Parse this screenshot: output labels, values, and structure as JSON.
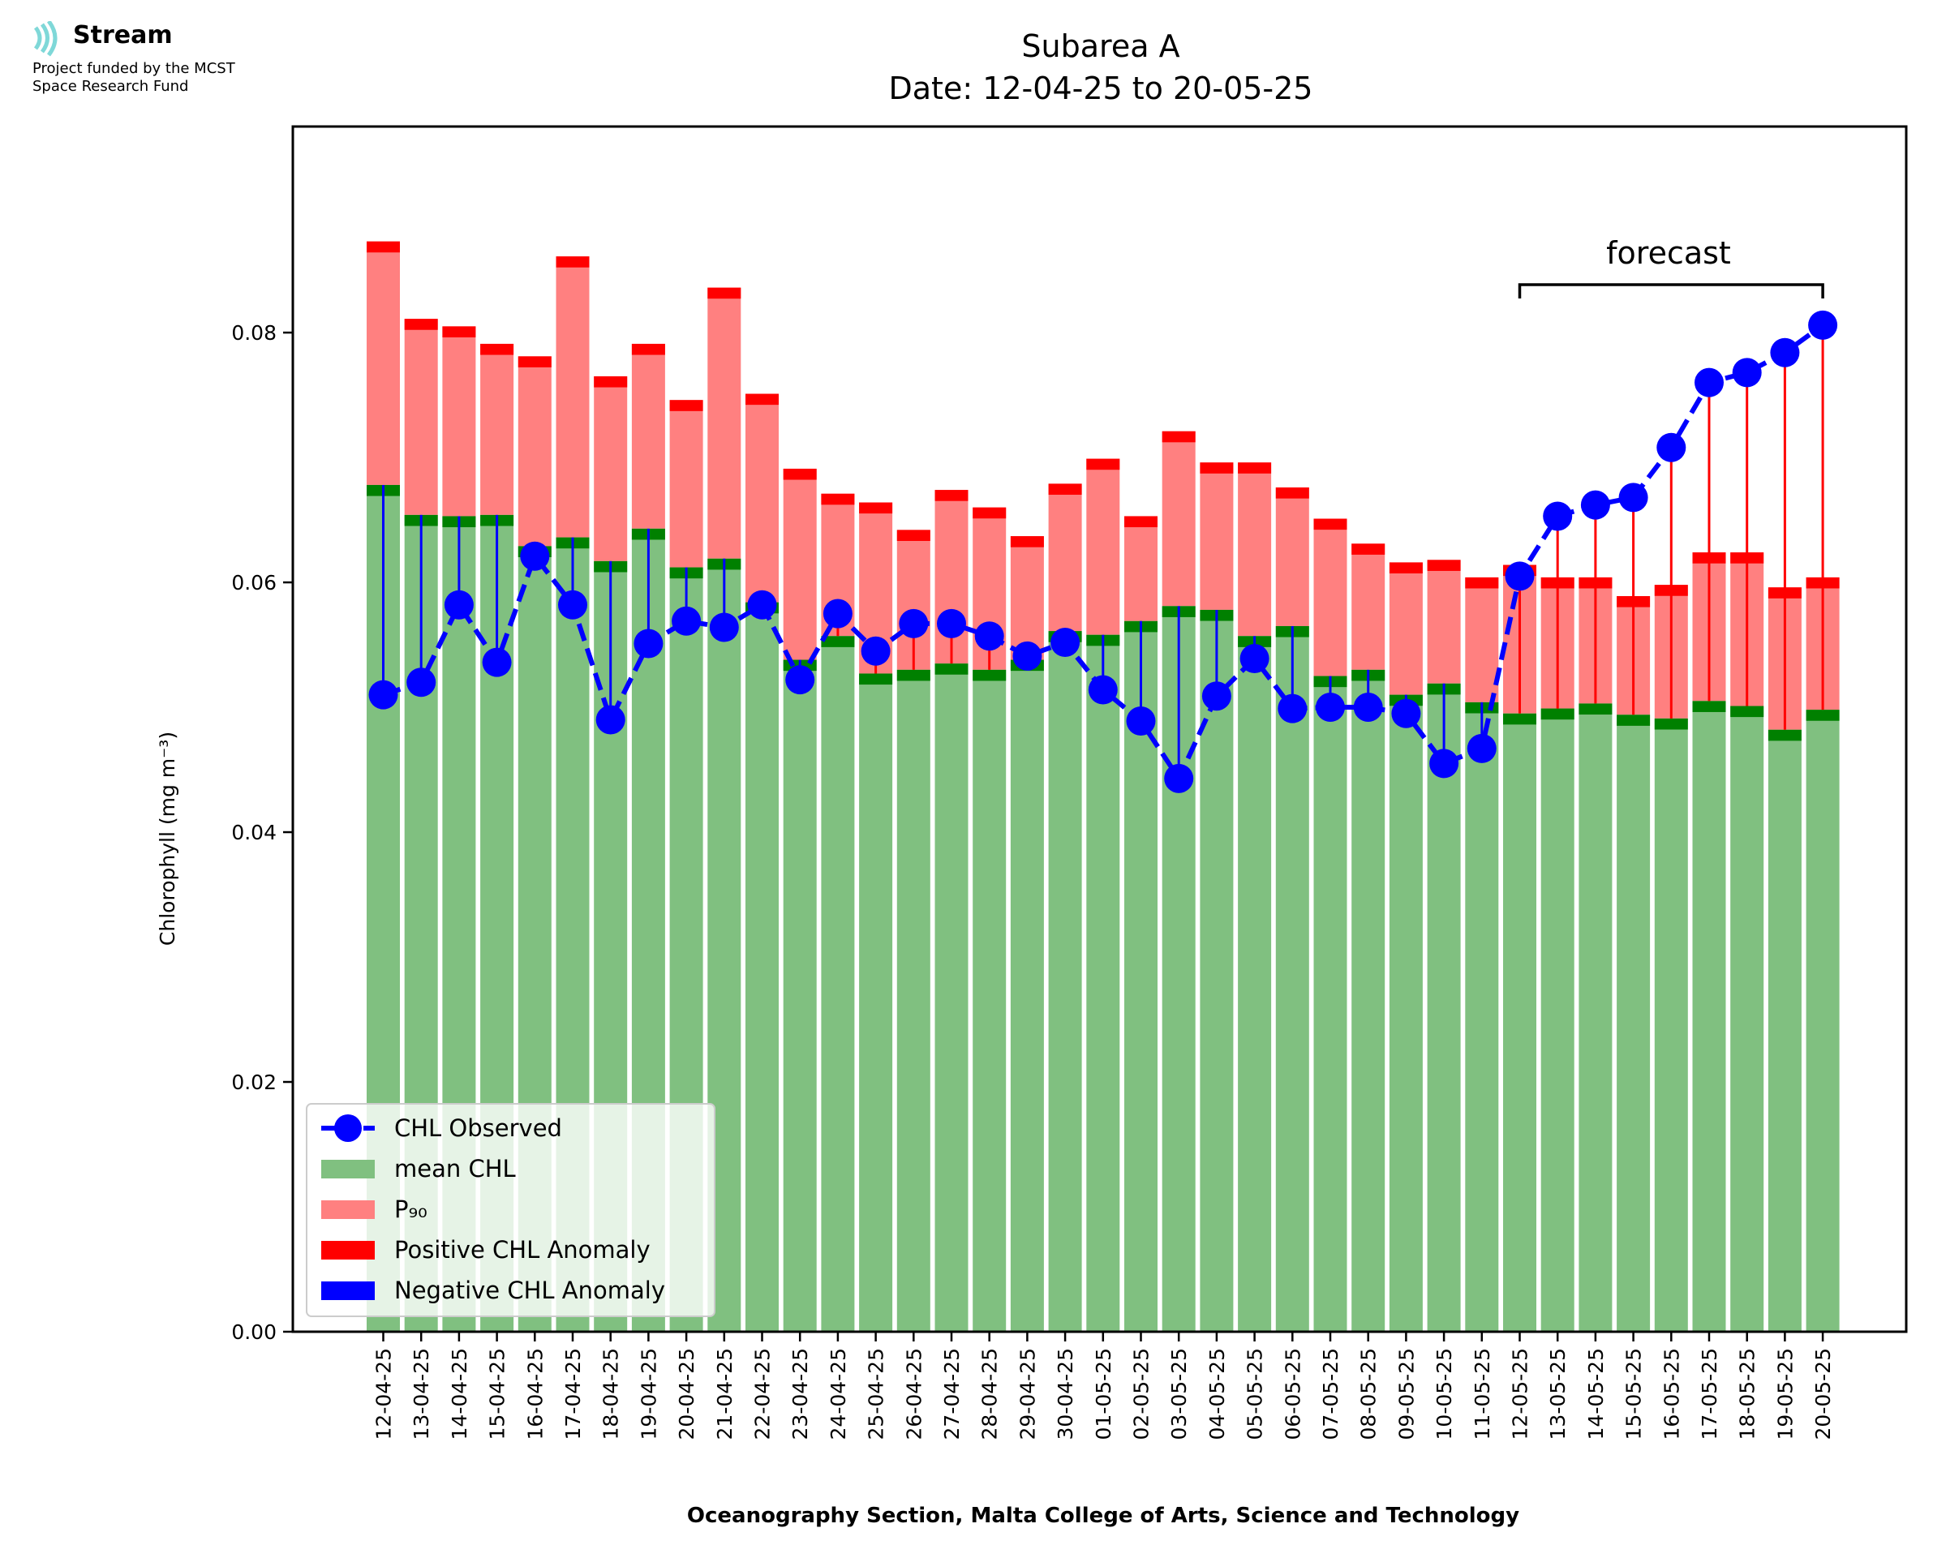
{
  "header": {
    "logo_name": "Stream",
    "funding_line1": "Project funded by the MCST",
    "funding_line2": "Space Research Fund"
  },
  "colors": {
    "mean": "#80c080",
    "mean_cap": "#008000",
    "p90": "#ff8080",
    "p90_cap": "#ff0000",
    "observed": "#0000ff",
    "positive_anomaly": "#ff0000",
    "negative_anomaly": "#0000ff",
    "logo": "#7fd8d8"
  },
  "chart_data": {
    "type": "bar",
    "title": "Subarea A",
    "subtitle": "Date: 12-04-25 to 20-05-25",
    "xlabel": "Oceanography Section, Malta College of Arts, Science and Technology",
    "ylabel": "Chlorophyll (mg m⁻³)",
    "ylim": [
      0,
      0.0965
    ],
    "yticks": [
      "0.00",
      "0.02",
      "0.04",
      "0.06",
      "0.08"
    ],
    "annotation": "forecast",
    "forecast_start": "12-05-25",
    "legend_position": "lower-left",
    "categories": [
      "12-04-25",
      "13-04-25",
      "14-04-25",
      "15-04-25",
      "16-04-25",
      "17-04-25",
      "18-04-25",
      "19-04-25",
      "20-04-25",
      "21-04-25",
      "22-04-25",
      "23-04-25",
      "24-04-25",
      "25-04-25",
      "26-04-25",
      "27-04-25",
      "28-04-25",
      "29-04-25",
      "30-04-25",
      "01-05-25",
      "02-05-25",
      "03-05-25",
      "04-05-25",
      "05-05-25",
      "06-05-25",
      "07-05-25",
      "08-05-25",
      "09-05-25",
      "10-05-25",
      "11-05-25",
      "12-05-25",
      "13-05-25",
      "14-05-25",
      "15-05-25",
      "16-05-25",
      "17-05-25",
      "18-05-25",
      "19-05-25",
      "20-05-25"
    ],
    "series": [
      {
        "name": "mean CHL",
        "values": [
          0.0678,
          0.0654,
          0.0653,
          0.0654,
          0.0629,
          0.0636,
          0.0617,
          0.0643,
          0.0612,
          0.0619,
          0.0584,
          0.0538,
          0.0557,
          0.0527,
          0.053,
          0.0535,
          0.053,
          0.0538,
          0.0561,
          0.0558,
          0.0569,
          0.0581,
          0.0578,
          0.0557,
          0.0565,
          0.0525,
          0.053,
          0.051,
          0.0519,
          0.0504,
          0.0495,
          0.0499,
          0.0503,
          0.0494,
          0.0491,
          0.0505,
          0.0501,
          0.0482,
          0.0498
        ]
      },
      {
        "name": "P₉₀",
        "values": [
          0.0873,
          0.0811,
          0.0805,
          0.0791,
          0.0781,
          0.0861,
          0.0765,
          0.0791,
          0.0746,
          0.0836,
          0.0751,
          0.0691,
          0.0671,
          0.0664,
          0.0642,
          0.0674,
          0.066,
          0.0637,
          0.0679,
          0.0699,
          0.0653,
          0.0721,
          0.0696,
          0.0696,
          0.0676,
          0.0651,
          0.0631,
          0.0616,
          0.0618,
          0.0604,
          0.0614,
          0.0604,
          0.0604,
          0.0589,
          0.0598,
          0.0624,
          0.0624,
          0.0596,
          0.0604
        ]
      },
      {
        "name": "CHL Observed",
        "values": [
          0.051,
          0.052,
          0.0582,
          0.0536,
          0.0621,
          0.0582,
          0.049,
          0.0551,
          0.0569,
          0.0564,
          0.0582,
          0.0522,
          0.0575,
          0.0545,
          0.0567,
          0.0567,
          0.0557,
          0.0541,
          0.0552,
          0.0514,
          0.0489,
          0.0443,
          0.0509,
          0.0539,
          0.0499,
          0.05,
          0.05,
          0.0495,
          0.0455,
          0.0467,
          0.0605,
          0.0653,
          0.0662,
          0.0668,
          0.0708,
          0.076,
          0.0768,
          0.0784,
          0.0806
        ]
      }
    ],
    "legend": [
      {
        "label": "CHL Observed",
        "kind": "line-marker"
      },
      {
        "label": "mean CHL",
        "kind": "patch-mean"
      },
      {
        "label": "P₉₀",
        "kind": "patch-p90"
      },
      {
        "label": "Positive CHL Anomaly",
        "kind": "patch-pos"
      },
      {
        "label": "Negative CHL Anomaly",
        "kind": "patch-neg"
      }
    ]
  }
}
